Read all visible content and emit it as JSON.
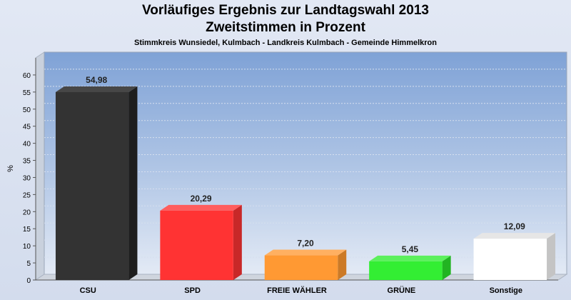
{
  "chart_data": {
    "type": "bar",
    "title": "Vorläufiges Ergebnis zur Landtagswahl 2013",
    "title_line2": "Zweitstimmen in Prozent",
    "subtitle": "Stimmkreis Wunsiedel, Kulmbach - Landkreis Kulmbach - Gemeinde Himmelkron",
    "ylabel": "%",
    "xlabel": "",
    "ylim": [
      0,
      65
    ],
    "yticks": [
      0,
      5,
      10,
      15,
      20,
      25,
      30,
      35,
      40,
      45,
      50,
      55,
      60
    ],
    "ytick_labels": [
      "0",
      "5",
      "10",
      "15",
      "20",
      "25",
      "30",
      "35",
      "40",
      "45",
      "50",
      "55",
      "60"
    ],
    "grid": true,
    "categories": [
      "CSU",
      "SPD",
      "FREIE WÄHLER",
      "GRÜNE",
      "Sonstige"
    ],
    "values": [
      54.98,
      20.29,
      7.2,
      5.45,
      12.09
    ],
    "value_labels": [
      "54,98",
      "20,29",
      "7,20",
      "5,45",
      "12,09"
    ],
    "colors": [
      "#333333",
      "#ff3333",
      "#ff9933",
      "#33ee33",
      "#ffffff"
    ],
    "side_colors": [
      "#1e1e1e",
      "#c82828",
      "#cc7a26",
      "#22b422",
      "#c4c4c4"
    ],
    "top_colors": [
      "#474747",
      "#ff5d5d",
      "#ffb061",
      "#5cf05c",
      "#e6e6e6"
    ]
  }
}
